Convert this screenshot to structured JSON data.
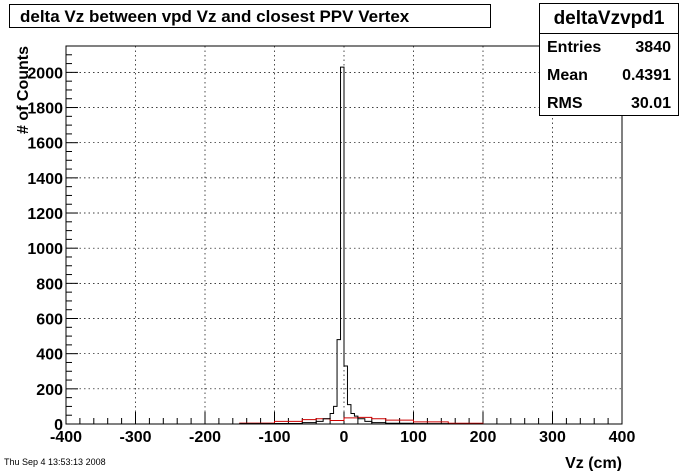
{
  "title": "delta Vz between vpd Vz and closest PPV Vertex",
  "stats": {
    "name": "deltaVzvpd1",
    "entries_label": "Entries",
    "entries_value": "3840",
    "mean_label": "Mean",
    "mean_value": "0.4391",
    "rms_label": "RMS",
    "rms_value": "30.01"
  },
  "timestamp": "Thu Sep  4 13:53:13 2008",
  "colors": {
    "main_hist": "#000000",
    "overlay_hist": "#cc0000",
    "grid": "#000000"
  },
  "chart_data": {
    "type": "histogram",
    "title": "delta Vz between vpd Vz and closest PPV Vertex",
    "xlabel": "Vz (cm)",
    "ylabel": "# of Counts",
    "xlim": [
      -400,
      400
    ],
    "ylim": [
      0,
      2150
    ],
    "grid": true,
    "x_ticks": [
      -400,
      -300,
      -200,
      -100,
      0,
      100,
      200,
      300,
      400
    ],
    "y_ticks": [
      0,
      200,
      400,
      600,
      800,
      1000,
      1200,
      1400,
      1600,
      1800,
      2000
    ],
    "series": [
      {
        "color": "#000000",
        "bins": [
          [
            -400,
            -150,
            0
          ],
          [
            -150,
            -100,
            2
          ],
          [
            -100,
            -60,
            3
          ],
          [
            -60,
            -40,
            8
          ],
          [
            -40,
            -30,
            15
          ],
          [
            -30,
            -20,
            30
          ],
          [
            -20,
            -15,
            60
          ],
          [
            -15,
            -10,
            100
          ],
          [
            -10,
            -5,
            480
          ],
          [
            -5,
            0,
            2030
          ],
          [
            0,
            5,
            330
          ],
          [
            5,
            10,
            110
          ],
          [
            10,
            15,
            60
          ],
          [
            15,
            20,
            45
          ],
          [
            20,
            30,
            30
          ],
          [
            30,
            40,
            15
          ],
          [
            40,
            60,
            8
          ],
          [
            60,
            100,
            4
          ],
          [
            100,
            150,
            2
          ],
          [
            150,
            400,
            0
          ]
        ]
      },
      {
        "color": "#cc0000",
        "bins": [
          [
            -400,
            -150,
            0
          ],
          [
            -150,
            -100,
            5
          ],
          [
            -100,
            -60,
            15
          ],
          [
            -60,
            -40,
            25
          ],
          [
            -40,
            -20,
            30
          ],
          [
            -20,
            0,
            20
          ],
          [
            0,
            20,
            35
          ],
          [
            20,
            40,
            38
          ],
          [
            40,
            60,
            30
          ],
          [
            60,
            100,
            22
          ],
          [
            100,
            150,
            12
          ],
          [
            150,
            200,
            4
          ],
          [
            200,
            400,
            0
          ]
        ]
      }
    ]
  }
}
